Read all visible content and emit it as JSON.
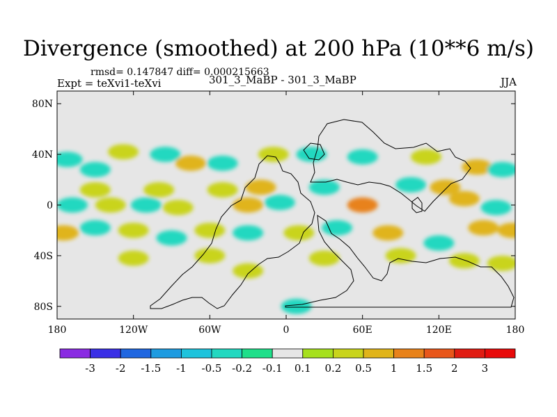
{
  "title": "Divergence (smoothed) at 200 hPa (10**6 m/s)",
  "stats": "rmsd= 0.147847 diff= 0.000215663",
  "expt": "Expt = teXvi1-teXvi",
  "case_name": "301_3_MaBP - 301_3_MaBP",
  "season": "JJA",
  "chart_data": {
    "type": "heatmap",
    "title": "Divergence (smoothed) at 200 hPa (10**6 m/s)",
    "xlabel": "",
    "ylabel": "",
    "xlim": [
      -180,
      180
    ],
    "ylim": [
      -90,
      90
    ],
    "x_ticks": [
      {
        "value": -180,
        "label": "180"
      },
      {
        "value": -120,
        "label": "120W"
      },
      {
        "value": -60,
        "label": "60W"
      },
      {
        "value": 0,
        "label": "0"
      },
      {
        "value": 60,
        "label": "60E"
      },
      {
        "value": 120,
        "label": "120E"
      },
      {
        "value": 180,
        "label": "180"
      }
    ],
    "y_ticks": [
      {
        "value": 80,
        "label": "80N"
      },
      {
        "value": 40,
        "label": "40N"
      },
      {
        "value": 0,
        "label": "0"
      },
      {
        "value": -40,
        "label": "40S"
      },
      {
        "value": -80,
        "label": "80S"
      }
    ],
    "levels": [
      "-3",
      "-2",
      "-1.5",
      "-1",
      "-0.5",
      "-0.2",
      "-0.1",
      "0.1",
      "0.2",
      "0.5",
      "1",
      "1.5",
      "2",
      "3"
    ],
    "colors": [
      "#8a2be2",
      "#3a2fe6",
      "#1f66e0",
      "#1e9be0",
      "#1ec3dc",
      "#22d8c0",
      "#1fdf8a",
      "#e6e6e6",
      "#a6e01e",
      "#c9d41c",
      "#e0b41a",
      "#e8821a",
      "#e8561a",
      "#e01c12",
      "#e80a0a"
    ],
    "field_description": "Mostly near-zero (gray) with scattered weak positive (green-yellow) and negative (teal/cyan) cells between about 60S and 55N",
    "cells": [
      {
        "lon": -172,
        "lat": 36,
        "v": -0.3
      },
      {
        "lon": -150,
        "lat": 28,
        "v": -0.3
      },
      {
        "lon": -128,
        "lat": 42,
        "v": 0.3
      },
      {
        "lon": -95,
        "lat": 40,
        "v": -0.3
      },
      {
        "lon": -75,
        "lat": 33,
        "v": 0.6
      },
      {
        "lon": -50,
        "lat": 33,
        "v": -0.3
      },
      {
        "lon": -150,
        "lat": 12,
        "v": 0.3
      },
      {
        "lon": -100,
        "lat": 12,
        "v": 0.3
      },
      {
        "lon": -50,
        "lat": 12,
        "v": 0.3
      },
      {
        "lon": -20,
        "lat": 14,
        "v": 0.6
      },
      {
        "lon": -168,
        "lat": 0,
        "v": -0.3
      },
      {
        "lon": -138,
        "lat": 0,
        "v": 0.3
      },
      {
        "lon": -110,
        "lat": 0,
        "v": -0.3
      },
      {
        "lon": -85,
        "lat": -2,
        "v": 0.3
      },
      {
        "lon": -30,
        "lat": 0,
        "v": 0.6
      },
      {
        "lon": -5,
        "lat": 2,
        "v": -0.3
      },
      {
        "lon": 30,
        "lat": 14,
        "v": -0.3
      },
      {
        "lon": 60,
        "lat": 0,
        "v": 1.2
      },
      {
        "lon": 98,
        "lat": 16,
        "v": -0.3
      },
      {
        "lon": 125,
        "lat": 14,
        "v": 0.6
      },
      {
        "lon": 150,
        "lat": 30,
        "v": 0.6
      },
      {
        "lon": 170,
        "lat": 28,
        "v": -0.3
      },
      {
        "lon": 140,
        "lat": 5,
        "v": 0.6
      },
      {
        "lon": 165,
        "lat": -2,
        "v": -0.3
      },
      {
        "lon": -175,
        "lat": -22,
        "v": 0.6
      },
      {
        "lon": -150,
        "lat": -18,
        "v": -0.3
      },
      {
        "lon": -120,
        "lat": -20,
        "v": 0.3
      },
      {
        "lon": -90,
        "lat": -26,
        "v": -0.3
      },
      {
        "lon": -60,
        "lat": -20,
        "v": 0.3
      },
      {
        "lon": -30,
        "lat": -22,
        "v": -0.3
      },
      {
        "lon": 10,
        "lat": -22,
        "v": 0.3
      },
      {
        "lon": 40,
        "lat": -18,
        "v": -0.3
      },
      {
        "lon": 80,
        "lat": -22,
        "v": 0.6
      },
      {
        "lon": 120,
        "lat": -30,
        "v": -0.3
      },
      {
        "lon": 155,
        "lat": -18,
        "v": 0.6
      },
      {
        "lon": 178,
        "lat": -20,
        "v": 0.6
      },
      {
        "lon": -120,
        "lat": -42,
        "v": 0.3
      },
      {
        "lon": -60,
        "lat": -40,
        "v": 0.3
      },
      {
        "lon": 30,
        "lat": -42,
        "v": 0.3
      },
      {
        "lon": 90,
        "lat": -40,
        "v": 0.3
      },
      {
        "lon": 140,
        "lat": -44,
        "v": 0.3
      },
      {
        "lon": 170,
        "lat": -46,
        "v": 0.3
      },
      {
        "lon": -30,
        "lat": -52,
        "v": 0.3
      },
      {
        "lon": 8,
        "lat": -80,
        "v": -0.3
      },
      {
        "lon": 20,
        "lat": 40,
        "v": -0.3
      },
      {
        "lon": 60,
        "lat": 38,
        "v": -0.3
      },
      {
        "lon": -10,
        "lat": 40,
        "v": 0.3
      },
      {
        "lon": 110,
        "lat": 38,
        "v": 0.3
      }
    ]
  }
}
